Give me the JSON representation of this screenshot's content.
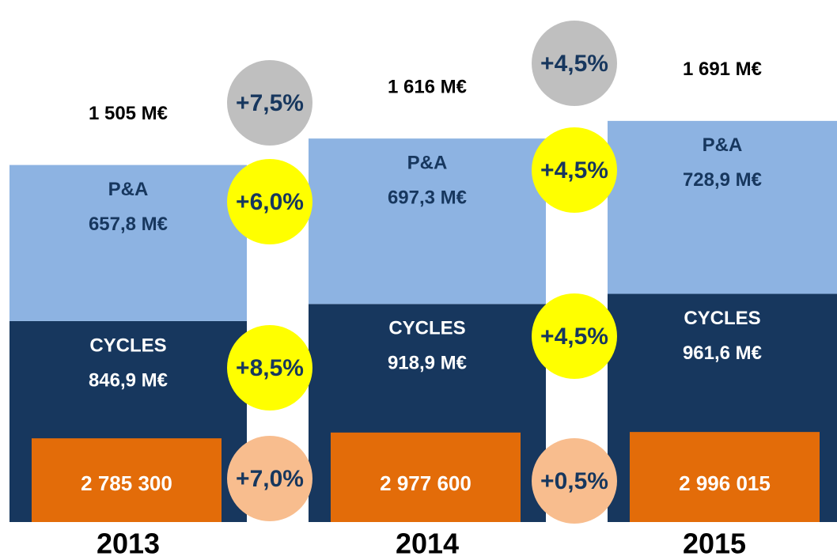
{
  "chart_data": {
    "type": "stacked_bar",
    "categories": [
      "2013",
      "2014",
      "2015"
    ],
    "series": [
      {
        "name": "CYCLES",
        "color": "#17375e",
        "values": [
          846.9,
          918.9,
          961.6
        ],
        "value_labels": [
          "846,9 M€",
          "918,9 M€",
          "961,6 M€"
        ]
      },
      {
        "name": "P&A",
        "color": "#8db3e2",
        "values": [
          657.8,
          697.3,
          728.9
        ],
        "value_labels": [
          "657,8 M€",
          "697,3 M€",
          "728,9 M€"
        ]
      }
    ],
    "totals": {
      "values": [
        1505,
        1616,
        1691
      ],
      "value_labels": [
        "1 505 M€",
        "1 616 M€",
        "1 691 M€"
      ]
    },
    "units": {
      "color": "#e36c09",
      "values": [
        2785300,
        2977600,
        2996015
      ],
      "value_labels": [
        "2 785 300",
        "2 977 600",
        "2 996 015"
      ]
    },
    "growth": [
      {
        "colors": [
          "#bfbfbf",
          "#ffff00",
          "#ffff00",
          "#f8bd8e"
        ],
        "values": [
          7.5,
          6.0,
          8.5,
          7.0
        ],
        "value_labels": [
          "+7,5%",
          "+6,0%",
          "+8,5%",
          "+7,0%"
        ]
      },
      {
        "colors": [
          "#bfbfbf",
          "#ffff00",
          "#ffff00",
          "#f8bd8e"
        ],
        "values": [
          4.5,
          4.5,
          4.5,
          0.5
        ],
        "value_labels": [
          "+4,5%",
          "+4,5%",
          "+4,5%",
          "+0,5%"
        ]
      }
    ]
  }
}
